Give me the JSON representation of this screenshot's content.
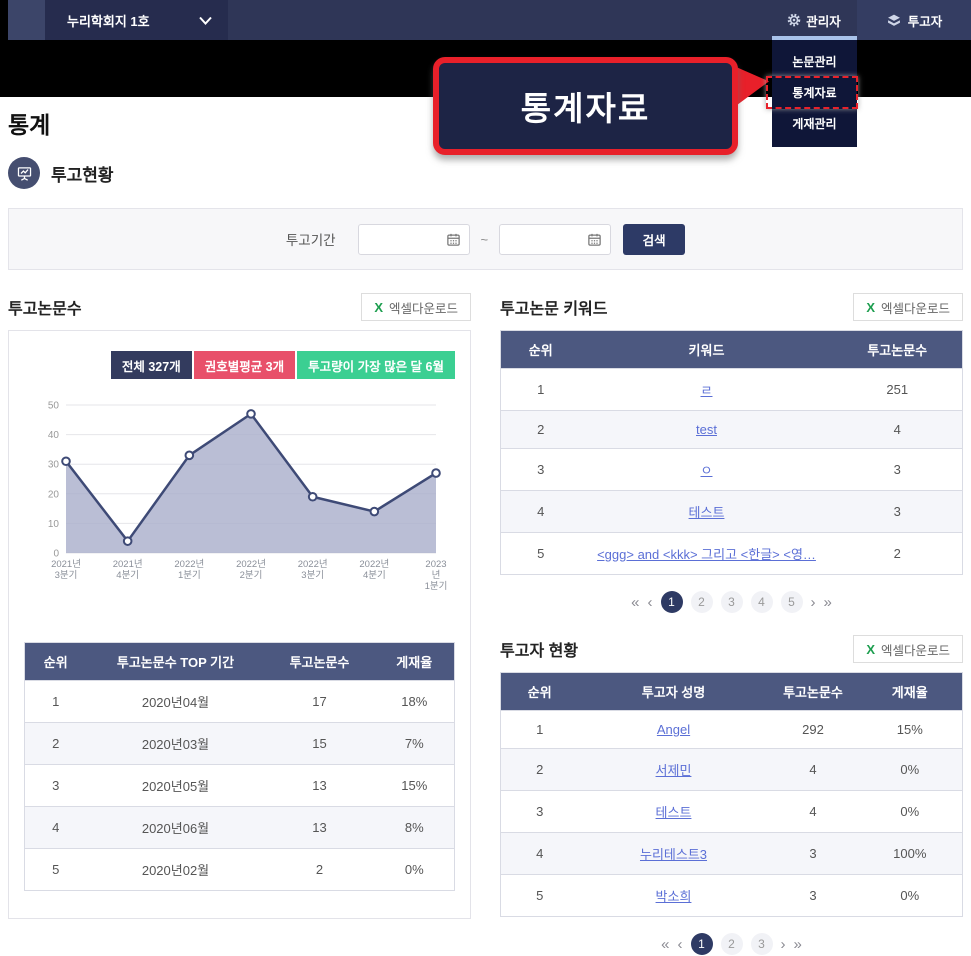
{
  "navbar": {
    "journal_selector": {
      "label": "누리학회지 1호"
    },
    "admin_menu": {
      "label": "관리자"
    },
    "submitter_menu": {
      "label": "투고자"
    },
    "dropdown": {
      "items": [
        {
          "label": "논문관리",
          "highlighted": false
        },
        {
          "label": "통계자료",
          "highlighted": true
        },
        {
          "label": "게재관리",
          "highlighted": false
        }
      ]
    }
  },
  "callout": {
    "label": "통계자료"
  },
  "page": {
    "title": "통계",
    "section_title": "투고현황"
  },
  "search": {
    "period_label": "투고기간",
    "date_from": "",
    "date_to": "",
    "tilde": "~",
    "button_label": "검색"
  },
  "excel_button": {
    "icon": "X",
    "label": "엑셀다운로드"
  },
  "submissions": {
    "title": "투고논문수",
    "badges": [
      {
        "label": "전체 327개",
        "color": "#333b5e"
      },
      {
        "label": "권호별평균 3개",
        "color": "#e8506a"
      },
      {
        "label": "투고량이 가장 많은 달 6월",
        "color": "#3bcf92"
      }
    ],
    "table": {
      "headers": [
        "순위",
        "투고논문수 TOP 기간",
        "투고논문수",
        "게재율"
      ],
      "rows": [
        [
          "1",
          "2020년04월",
          "17",
          "18%"
        ],
        [
          "2",
          "2020년03월",
          "15",
          "7%"
        ],
        [
          "3",
          "2020년05월",
          "13",
          "15%"
        ],
        [
          "4",
          "2020년06월",
          "13",
          "8%"
        ],
        [
          "5",
          "2020년02월",
          "2",
          "0%"
        ]
      ]
    }
  },
  "chart_data": {
    "type": "area",
    "title": "투고논문수",
    "categories": [
      "2021년 3분기",
      "2021년 4분기",
      "2022년 1분기",
      "2022년 2분기",
      "2022년 3분기",
      "2022년 4분기",
      "2023년 1분기"
    ],
    "category_lines": [
      [
        "2021년",
        "3분기"
      ],
      [
        "2021년",
        "4분기"
      ],
      [
        "2022년",
        "1분기"
      ],
      [
        "2022년",
        "2분기"
      ],
      [
        "2022년",
        "3분기"
      ],
      [
        "2022년",
        "4분기"
      ],
      [
        "2023",
        "년",
        "1분기"
      ]
    ],
    "values": [
      31,
      4,
      33,
      47,
      19,
      14,
      27
    ],
    "xlabel": "",
    "ylabel": "",
    "ylim": [
      0,
      50
    ],
    "yticks": [
      0,
      10,
      20,
      30,
      40,
      50
    ],
    "grid": true,
    "legend": "none",
    "line_color": "#3e4a76",
    "fill_color": "#a9aecb"
  },
  "keywords": {
    "title": "투고논문 키워드",
    "table": {
      "headers": [
        "순위",
        "키워드",
        "투고논문수"
      ],
      "rows": [
        {
          "rank": "1",
          "keyword": "ㄹ",
          "count": "251"
        },
        {
          "rank": "2",
          "keyword": "test",
          "count": "4"
        },
        {
          "rank": "3",
          "keyword": "ㅇ",
          "count": "3"
        },
        {
          "rank": "4",
          "keyword": "테스트",
          "count": "3"
        },
        {
          "rank": "5",
          "keyword": "<ggg> and <kkk> 그리고 <한글> <영…",
          "count": "2"
        }
      ]
    },
    "pagination": {
      "first": "«",
      "prev": "‹",
      "pages": [
        "1",
        "2",
        "3",
        "4",
        "5"
      ],
      "current": "1",
      "next": "›",
      "last": "»"
    }
  },
  "submitters": {
    "title": "투고자 현황",
    "table": {
      "headers": [
        "순위",
        "투고자 성명",
        "투고논문수",
        "게재율"
      ],
      "rows": [
        {
          "rank": "1",
          "name": "Angel",
          "count": "292",
          "rate": "15%"
        },
        {
          "rank": "2",
          "name": "서제민",
          "count": "4",
          "rate": "0%"
        },
        {
          "rank": "3",
          "name": "테스트",
          "count": "4",
          "rate": "0%"
        },
        {
          "rank": "4",
          "name": "누리테스트3",
          "count": "3",
          "rate": "100%"
        },
        {
          "rank": "5",
          "name": "박소희",
          "count": "3",
          "rate": "0%"
        }
      ]
    },
    "pagination": {
      "first": "«",
      "prev": "‹",
      "pages": [
        "1",
        "2",
        "3"
      ],
      "current": "1",
      "next": "›",
      "last": "»"
    }
  },
  "colors": {
    "navbar": "#2f3657",
    "table_header": "#4c5880",
    "link": "#5b6fd6",
    "highlight_red": "#e8202a",
    "search_button": "#2d3a66",
    "excel_x_green": "#1d9e4f"
  }
}
